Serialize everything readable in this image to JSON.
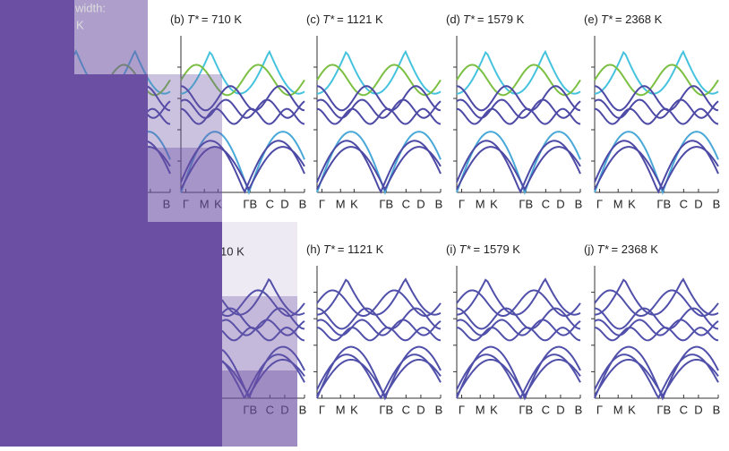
{
  "header": {
    "partial_1": "width:",
    "partial_2": "K"
  },
  "row_1_partial_kpoint": "B",
  "row_1": [
    {
      "title": {
        "label": "(b)",
        "symbol": "T*",
        "text": "= 710 K"
      },
      "kpoints": [
        "Γ",
        "M",
        "K",
        "ΓB",
        "C",
        "D",
        "B"
      ]
    },
    {
      "title": {
        "label": "(c)",
        "symbol": "T*",
        "text": "= 1121 K"
      },
      "kpoints": [
        "Γ",
        "M",
        "K",
        "ΓB",
        "C",
        "D",
        "B"
      ]
    },
    {
      "title": {
        "label": "(d)",
        "symbol": "T*",
        "text": "= 1579 K"
      },
      "kpoints": [
        "Γ",
        "M",
        "K",
        "ΓB",
        "C",
        "D",
        "B"
      ]
    },
    {
      "title": {
        "label": "(e)",
        "symbol": "T*",
        "text": "= 2368 K"
      },
      "kpoints": [
        "Γ",
        "M",
        "K",
        "ΓB",
        "C",
        "D",
        "B"
      ]
    }
  ],
  "row_2_partial": {
    "title": "10 K",
    "kpoints": [
      "ΓB",
      "C",
      "D",
      "B"
    ]
  },
  "row_2": [
    {
      "title": {
        "label": "(h)",
        "symbol": "T*",
        "text": "= 1121 K"
      },
      "kpoints": [
        "Γ",
        "M",
        "K",
        "ΓB",
        "C",
        "D",
        "B"
      ]
    },
    {
      "title": {
        "label": "(i)",
        "symbol": "T*",
        "text": "= 1579 K"
      },
      "kpoints": [
        "Γ",
        "M",
        "K",
        "ΓB",
        "C",
        "D",
        "B"
      ]
    },
    {
      "title": {
        "label": "(j)",
        "symbol": "T*",
        "text": "= 2368 K"
      },
      "kpoints": [
        "Γ",
        "M",
        "K",
        "ΓB",
        "C",
        "D",
        "B"
      ]
    }
  ]
}
